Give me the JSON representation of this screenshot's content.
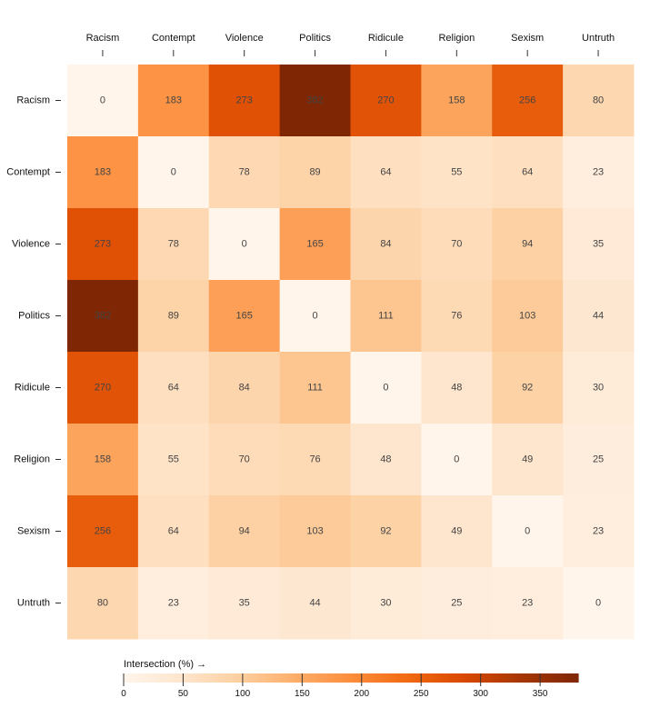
{
  "chart_data": {
    "type": "heatmap",
    "title": "",
    "x_categories": [
      "Racism",
      "Contempt",
      "Violence",
      "Politics",
      "Ridicule",
      "Religion",
      "Sexism",
      "Untruth"
    ],
    "y_categories": [
      "Racism",
      "Contempt",
      "Violence",
      "Politics",
      "Ridicule",
      "Religion",
      "Sexism",
      "Untruth"
    ],
    "values": [
      [
        0,
        183,
        273,
        382,
        270,
        158,
        256,
        80
      ],
      [
        183,
        0,
        78,
        89,
        64,
        55,
        64,
        23
      ],
      [
        273,
        78,
        0,
        165,
        84,
        70,
        94,
        35
      ],
      [
        382,
        89,
        165,
        0,
        111,
        76,
        103,
        44
      ],
      [
        270,
        64,
        84,
        111,
        0,
        48,
        92,
        30
      ],
      [
        158,
        55,
        70,
        76,
        48,
        0,
        49,
        25
      ],
      [
        256,
        64,
        94,
        103,
        92,
        49,
        0,
        23
      ],
      [
        80,
        23,
        35,
        44,
        30,
        25,
        23,
        0
      ]
    ],
    "legend": {
      "title": "Intersection (%) →",
      "domain": [
        0,
        382
      ],
      "ticks": [
        0,
        50,
        100,
        150,
        200,
        250,
        300,
        350
      ]
    },
    "color_scheme": {
      "name": "Oranges",
      "stops": [
        "#fff5eb",
        "#fee6ce",
        "#fdd0a2",
        "#fdae6b",
        "#fd8d3c",
        "#f16913",
        "#d94801",
        "#a63603",
        "#7f2704"
      ]
    }
  }
}
